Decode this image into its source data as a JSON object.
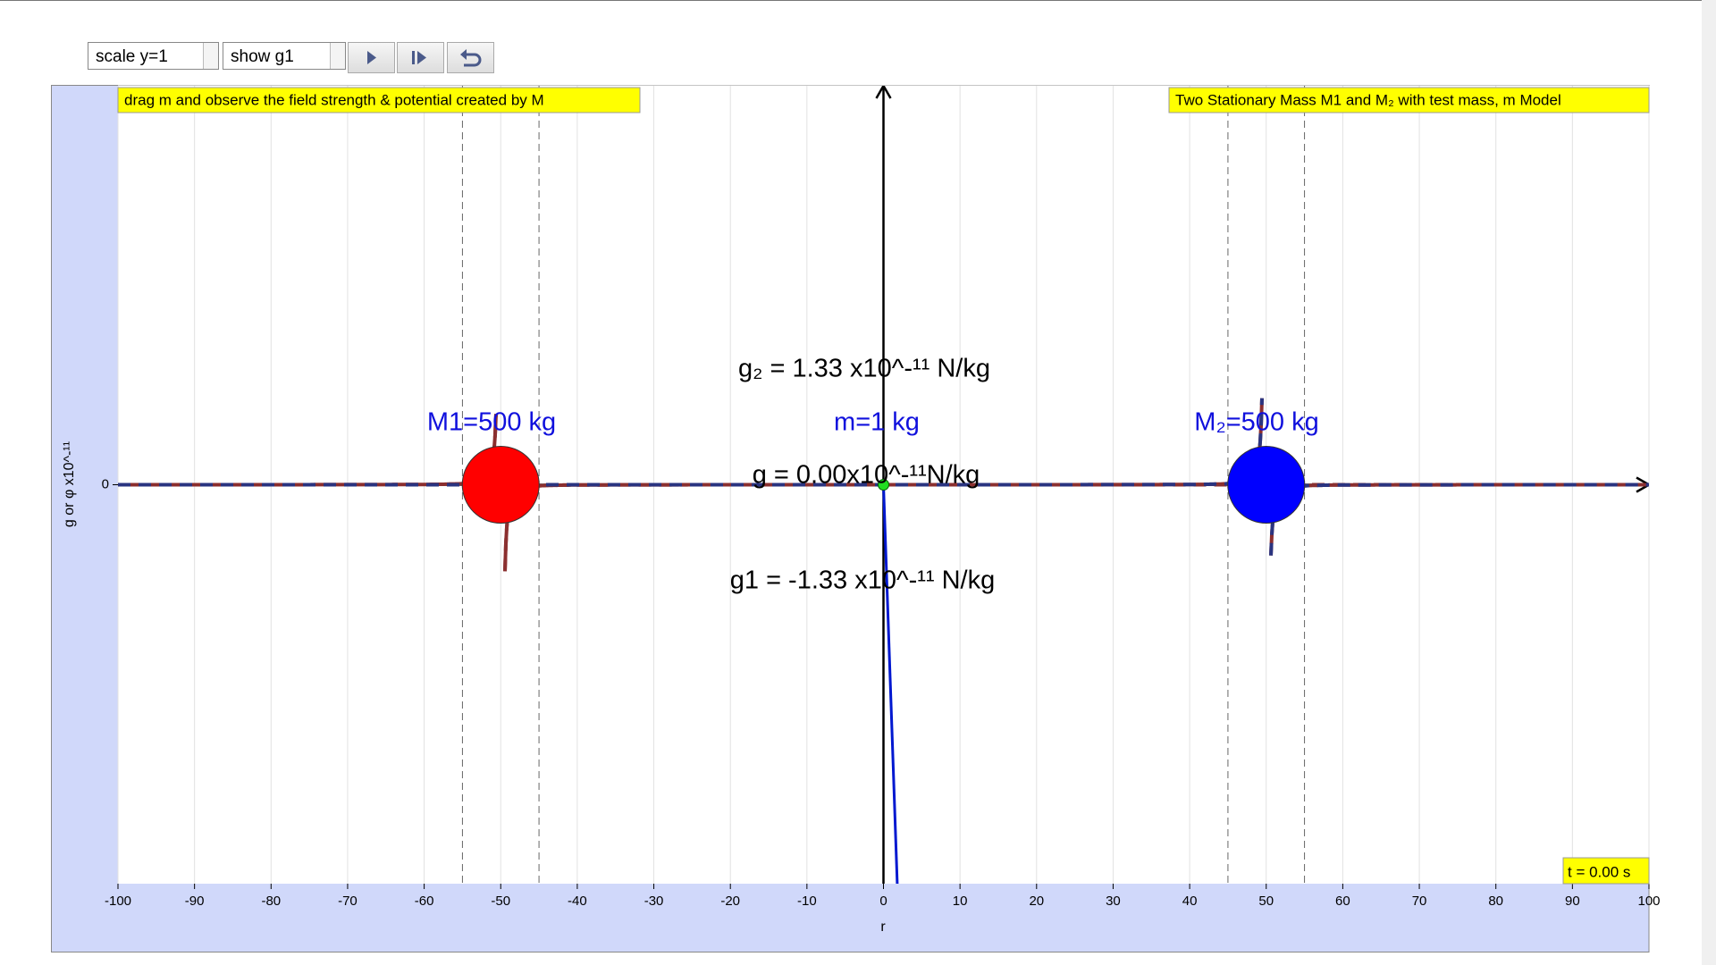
{
  "controls": {
    "scale_select": "scale y=1",
    "show_select": "show g1"
  },
  "header": {
    "instruction": "drag m and observe the field strength & potential created by M",
    "model_title": "Two Stationary Mass M1 and M₂ with test mass, m Model"
  },
  "plot": {
    "xticks": [
      -100,
      -90,
      -80,
      -70,
      -60,
      -50,
      -40,
      -30,
      -20,
      -10,
      0,
      10,
      20,
      30,
      40,
      50,
      60,
      70,
      80,
      90,
      100
    ],
    "yticks": [
      0
    ],
    "x_label": "r",
    "y_label": "g or φ x10^-¹¹",
    "mass1_label": "M1=500 kg",
    "mass2_label": "M₂=500 kg",
    "test_mass_label": "m=1 kg",
    "g2_label": "g₂ = 1.33 x10^-¹¹ N/kg",
    "g_label": "g = 0.00x10^-¹¹N/kg",
    "g1_label": "g1 = -1.33 x10^-¹¹ N/kg",
    "time_label": "t = 0.00 s"
  }
}
